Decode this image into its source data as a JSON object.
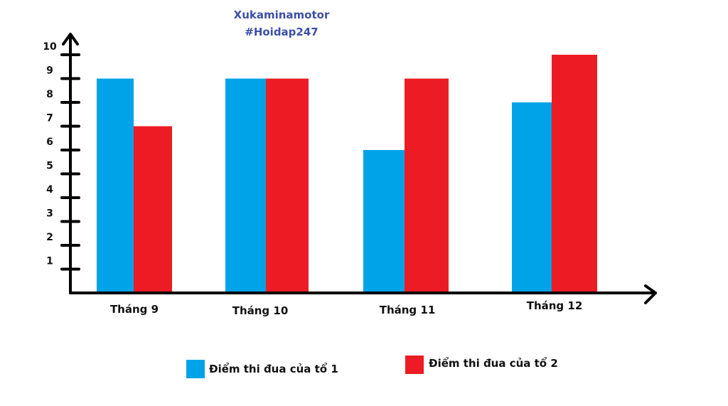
{
  "title_lines": [
    "Xukaminamotor",
    "#Hoidap247"
  ],
  "chart_data": {
    "type": "bar",
    "title": "Xukaminamotor #Hoidap247",
    "categories": [
      "Tháng 9",
      "Tháng 10",
      "Tháng 11",
      "Tháng 12"
    ],
    "series": [
      {
        "name": "Điểm thi đua của tổ 1",
        "color": "#00a2e8",
        "values": [
          9,
          9,
          6,
          8
        ]
      },
      {
        "name": "Điểm thi đua của tổ 2",
        "color": "#ed1c24",
        "values": [
          7,
          9,
          9,
          10
        ]
      }
    ],
    "y_ticks": [
      1,
      2,
      3,
      4,
      5,
      6,
      7,
      8,
      9,
      10
    ],
    "ylim": [
      0,
      10
    ],
    "xlabel": "",
    "ylabel": "",
    "grid": false,
    "legend_position": "bottom"
  }
}
